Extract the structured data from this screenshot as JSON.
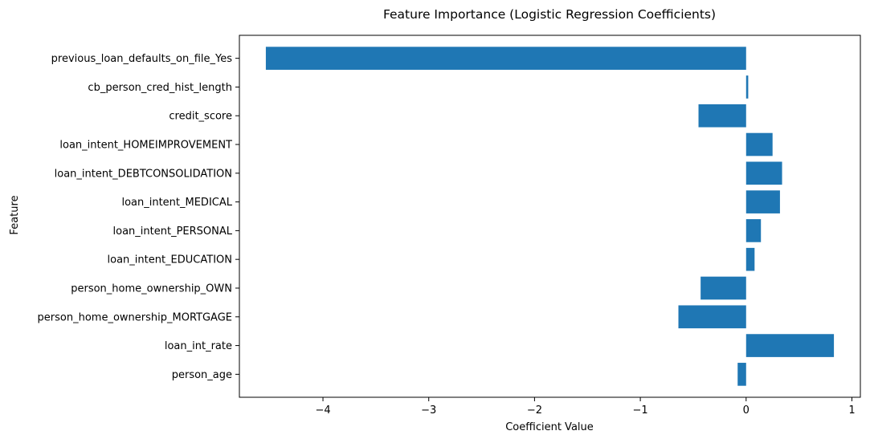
{
  "chart_data": {
    "type": "bar",
    "orientation": "horizontal",
    "title": "Feature Importance (Logistic Regression Coefficients)",
    "xlabel": "Coefficient Value",
    "ylabel": "Feature",
    "categories": [
      "previous_loan_defaults_on_file_Yes",
      "cb_person_cred_hist_length",
      "credit_score",
      "loan_intent_HOMEIMPROVEMENT",
      "loan_intent_DEBTCONSOLIDATION",
      "loan_intent_MEDICAL",
      "loan_intent_PERSONAL",
      "loan_intent_EDUCATION",
      "person_home_ownership_OWN",
      "person_home_ownership_MORTGAGE",
      "loan_int_rate",
      "person_age"
    ],
    "values": [
      -4.54,
      0.02,
      -0.45,
      0.25,
      0.34,
      0.32,
      0.14,
      0.08,
      -0.43,
      -0.64,
      0.83,
      -0.08
    ],
    "xlim": [
      -4.79,
      1.08
    ],
    "xticks": [
      -4,
      -3,
      -2,
      -1,
      0,
      1
    ],
    "xtick_labels": [
      "−4",
      "−3",
      "−2",
      "−1",
      "0",
      "1"
    ],
    "bar_color": "#1f77b4",
    "grid": false,
    "legend": null
  }
}
